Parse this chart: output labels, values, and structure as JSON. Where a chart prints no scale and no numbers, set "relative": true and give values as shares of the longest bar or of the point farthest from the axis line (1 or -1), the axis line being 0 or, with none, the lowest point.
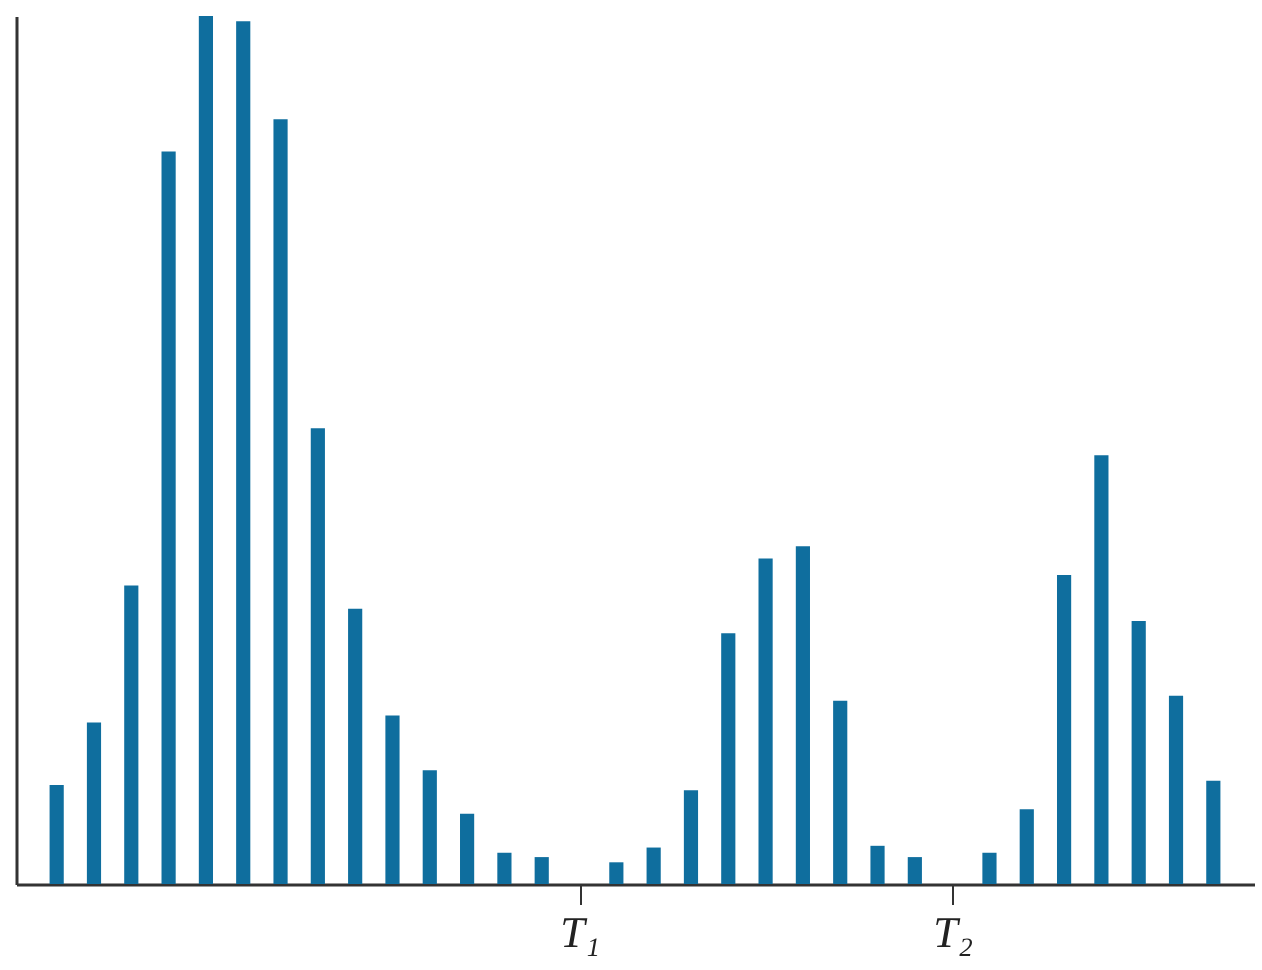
{
  "chart_data": {
    "type": "bar",
    "relative": true,
    "color": "#0f6e9e",
    "categories": [
      null,
      null,
      null,
      null,
      null,
      null,
      null,
      null,
      null,
      null,
      null,
      null,
      null,
      null,
      "T₁",
      null,
      null,
      null,
      null,
      null,
      null,
      null,
      null,
      null,
      "T₂",
      null,
      null,
      null,
      null,
      null,
      null,
      null
    ],
    "values": [
      0.114,
      0.186,
      0.344,
      0.844,
      1,
      0.994,
      0.881,
      0.525,
      0.317,
      0.194,
      0.131,
      0.081,
      0.036,
      0.031,
      null,
      0.025,
      0.042,
      0.108,
      0.289,
      0.375,
      0.389,
      0.211,
      0.044,
      0.031,
      null,
      0.036,
      0.086,
      0.356,
      0.494,
      0.303,
      0.217,
      0.119
    ]
  }
}
